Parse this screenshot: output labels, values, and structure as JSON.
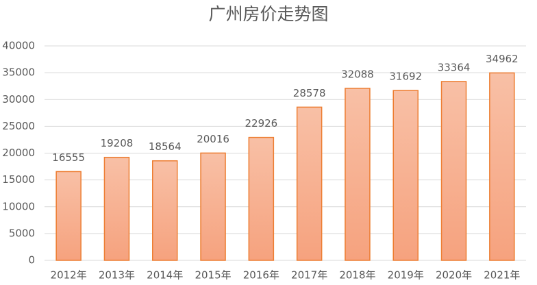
{
  "chart_data": {
    "type": "bar",
    "title": "广州房价走势图",
    "categories": [
      "2012年",
      "2013年",
      "2014年",
      "2015年",
      "2016年",
      "2017年",
      "2018年",
      "2019年",
      "2020年",
      "2021年"
    ],
    "values": [
      16555,
      19208,
      18564,
      20016,
      22926,
      28578,
      32088,
      31692,
      33364,
      34962
    ],
    "color": "#ed7d31",
    "ylim": [
      0,
      40000
    ],
    "yticks": [
      0,
      5000,
      10000,
      15000,
      20000,
      25000,
      30000,
      35000,
      40000
    ],
    "grid": true,
    "data_labels": true
  }
}
